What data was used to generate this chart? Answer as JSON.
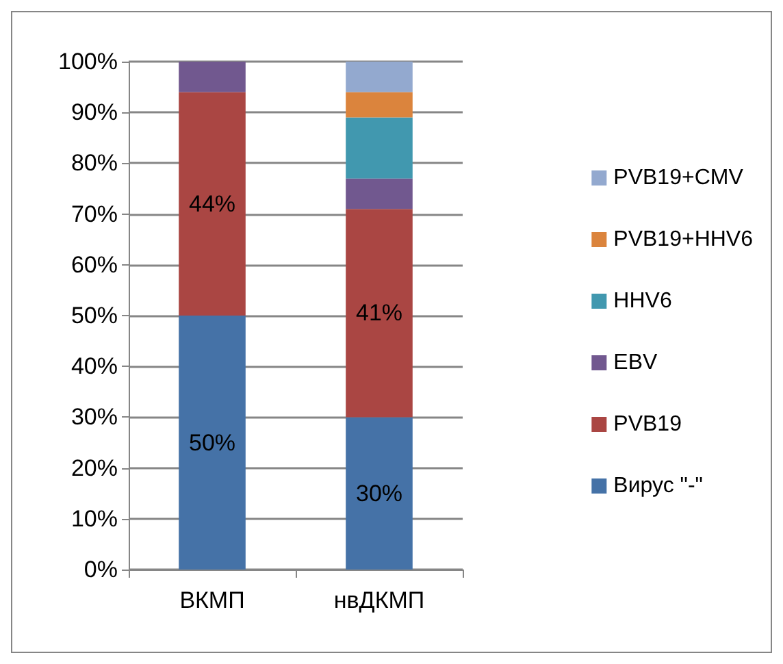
{
  "chart_data": {
    "type": "bar",
    "stacked": true,
    "categories": [
      "ВКМП",
      "нвДКМП"
    ],
    "series": [
      {
        "name": "Вирус \"-\"",
        "color": "#4572a7",
        "values": [
          50,
          30
        ],
        "value_labels": [
          "50%",
          "30%"
        ]
      },
      {
        "name": "PVB19",
        "color": "#aa4643",
        "values": [
          44,
          41
        ],
        "value_labels": [
          "44%",
          "41%"
        ]
      },
      {
        "name": "EBV",
        "color": "#71588f",
        "values": [
          6,
          6
        ],
        "value_labels": [
          null,
          null
        ]
      },
      {
        "name": "HHV6",
        "color": "#4198af",
        "values": [
          0,
          12
        ],
        "value_labels": [
          null,
          null
        ]
      },
      {
        "name": "PVB19+HHV6",
        "color": "#db843d",
        "values": [
          0,
          5
        ],
        "value_labels": [
          null,
          null
        ]
      },
      {
        "name": "PVB19+CMV",
        "color": "#93a9cf",
        "values": [
          0,
          6
        ],
        "value_labels": [
          null,
          null
        ]
      }
    ],
    "ylim": [
      0,
      100
    ],
    "yticks": [
      {
        "value": 0,
        "label": "0%"
      },
      {
        "value": 10,
        "label": "10%"
      },
      {
        "value": 20,
        "label": "20%"
      },
      {
        "value": 30,
        "label": "30%"
      },
      {
        "value": 40,
        "label": "40%"
      },
      {
        "value": 50,
        "label": "50%"
      },
      {
        "value": 60,
        "label": "60%"
      },
      {
        "value": 70,
        "label": "70%"
      },
      {
        "value": 80,
        "label": "80%"
      },
      {
        "value": 90,
        "label": "90%"
      },
      {
        "value": 100,
        "label": "100%"
      }
    ],
    "grid": "y",
    "legend": "right"
  }
}
